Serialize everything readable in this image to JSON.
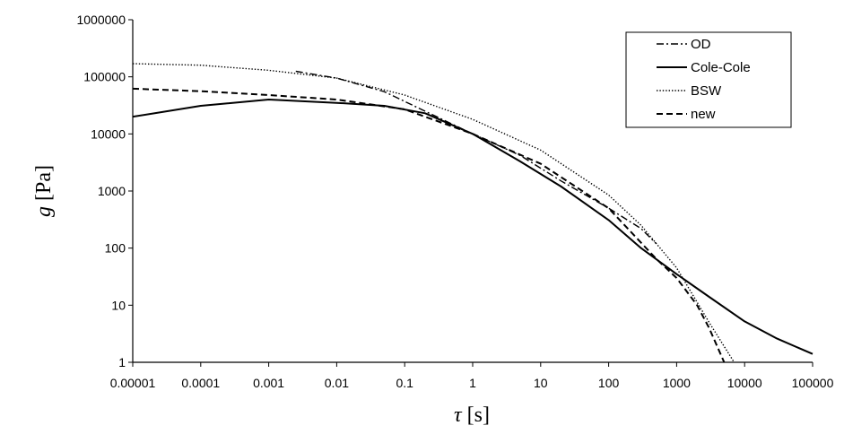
{
  "chart_data": {
    "type": "line",
    "xlabel_var": "τ",
    "xlabel_unit": "[s]",
    "ylabel_var": "g",
    "ylabel_unit": "[Pa]",
    "x_scale": "log",
    "y_scale": "log",
    "xlim": [
      1e-05,
      100000
    ],
    "ylim": [
      1,
      1000000
    ],
    "x_ticks": [
      "0.00001",
      "0.0001",
      "0.001",
      "0.01",
      "0.1",
      "1",
      "10",
      "100",
      "1000",
      "10000",
      "100000"
    ],
    "y_ticks": [
      "1",
      "10",
      "100",
      "1000",
      "10000",
      "100000",
      "1000000"
    ],
    "grid": false,
    "legend_position": "top-right",
    "series": [
      {
        "name": "OD",
        "style": "dashdot",
        "points": [
          [
            0.0025,
            125000
          ],
          [
            0.01,
            95000
          ],
          [
            0.05,
            55000
          ],
          [
            0.2,
            25000
          ],
          [
            1,
            10000
          ],
          [
            5,
            4200
          ],
          [
            20,
            1500
          ],
          [
            100,
            500
          ],
          [
            300,
            220
          ],
          [
            500,
            120
          ]
        ]
      },
      {
        "name": "Cole-Cole",
        "style": "solid",
        "points": [
          [
            1e-05,
            20000
          ],
          [
            0.0001,
            31000
          ],
          [
            0.001,
            40000
          ],
          [
            0.01,
            35000
          ],
          [
            0.05,
            31000
          ],
          [
            0.2,
            23000
          ],
          [
            1,
            10000
          ],
          [
            5,
            3300
          ],
          [
            20,
            1200
          ],
          [
            100,
            310
          ],
          [
            300,
            100
          ],
          [
            1000,
            35
          ],
          [
            3000,
            14
          ],
          [
            10000,
            5.2
          ],
          [
            30000,
            2.6
          ],
          [
            100000,
            1.4
          ]
        ]
      },
      {
        "name": "BSW",
        "style": "dotted",
        "points": [
          [
            1e-05,
            170000
          ],
          [
            0.0001,
            160000
          ],
          [
            0.001,
            130000
          ],
          [
            0.01,
            95000
          ],
          [
            0.1,
            48000
          ],
          [
            1,
            18000
          ],
          [
            10,
            5200
          ],
          [
            100,
            850
          ],
          [
            300,
            250
          ],
          [
            1000,
            45
          ],
          [
            3000,
            5
          ],
          [
            7000,
            1
          ]
        ]
      },
      {
        "name": "new",
        "style": "dashed",
        "points": [
          [
            1e-05,
            62000
          ],
          [
            0.0001,
            56000
          ],
          [
            0.001,
            48000
          ],
          [
            0.01,
            40000
          ],
          [
            0.1,
            27000
          ],
          [
            1,
            10000
          ],
          [
            10,
            3000
          ],
          [
            100,
            500
          ],
          [
            500,
            65
          ],
          [
            1000,
            30
          ],
          [
            2000,
            10
          ],
          [
            3000,
            4
          ],
          [
            5000,
            1
          ]
        ]
      }
    ]
  }
}
